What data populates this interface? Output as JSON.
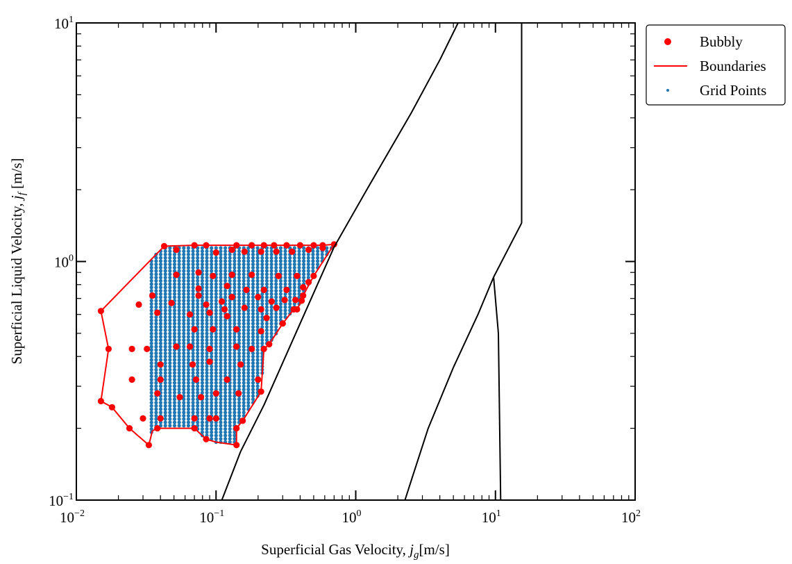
{
  "chart_data": {
    "type": "scatter",
    "xscale": "log",
    "yscale": "log",
    "xlim": [
      0.01,
      100
    ],
    "ylim": [
      0.1,
      10
    ],
    "xticks": [
      {
        "base": "10",
        "exp": "−2"
      },
      {
        "base": "10",
        "exp": "−1"
      },
      {
        "base": "10",
        "exp": "0"
      },
      {
        "base": "10",
        "exp": "1"
      },
      {
        "base": "10",
        "exp": "2"
      }
    ],
    "yticks": [
      {
        "base": "10",
        "exp": "−1"
      },
      {
        "base": "10",
        "exp": "0"
      },
      {
        "base": "10",
        "exp": "1"
      }
    ],
    "xlabel": {
      "text": "Superficial Gas Velocity, ",
      "var": "j",
      "sub": "g",
      "unit": "[m/s]"
    },
    "ylabel": {
      "text": "Superficial Liquid Velocity, ",
      "var": "j",
      "sub": "f",
      "unit": " [m/s]"
    },
    "grid": false,
    "legend": {
      "position": "outside-top-right",
      "entries": [
        {
          "label": "Bubbly",
          "marker": "dot",
          "color": "#ff0000"
        },
        {
          "label": "Boundaries",
          "marker": "line",
          "color": "#ff0000"
        },
        {
          "label": "Grid Points",
          "marker": "small-dot",
          "color": "#1f77b4"
        }
      ]
    },
    "colors": {
      "bubbly": "#ff0000",
      "boundaries": "#ff0000",
      "grid": "#1f77b4",
      "transition": "#000000"
    },
    "grid_points": {
      "x_range": [
        0.0345,
        0.67
      ],
      "y_range": [
        0.175,
        1.14
      ],
      "n_columns": 40,
      "n_rows": 60
    },
    "boundary_polygon": [
      [
        0.0425,
        1.16
      ],
      [
        0.07,
        1.17
      ],
      [
        0.085,
        1.17
      ],
      [
        0.14,
        1.17
      ],
      [
        0.18,
        1.17
      ],
      [
        0.22,
        1.17
      ],
      [
        0.26,
        1.17
      ],
      [
        0.32,
        1.17
      ],
      [
        0.4,
        1.17
      ],
      [
        0.5,
        1.17
      ],
      [
        0.58,
        1.17
      ],
      [
        0.7,
        1.18
      ],
      [
        0.5,
        0.87
      ],
      [
        0.42,
        0.72
      ],
      [
        0.41,
        0.685
      ],
      [
        0.38,
        0.63
      ],
      [
        0.36,
        0.63
      ],
      [
        0.3,
        0.55
      ],
      [
        0.24,
        0.45
      ],
      [
        0.22,
        0.43
      ],
      [
        0.21,
        0.285
      ],
      [
        0.155,
        0.215
      ],
      [
        0.14,
        0.2
      ],
      [
        0.14,
        0.17
      ],
      [
        0.1,
        0.175
      ],
      [
        0.085,
        0.18
      ],
      [
        0.07,
        0.2
      ],
      [
        0.038,
        0.2
      ],
      [
        0.035,
        0.195
      ],
      [
        0.033,
        0.17
      ],
      [
        0.024,
        0.2
      ],
      [
        0.018,
        0.245
      ],
      [
        0.015,
        0.26
      ],
      [
        0.017,
        0.43
      ],
      [
        0.015,
        0.62
      ],
      [
        0.0425,
        1.16
      ]
    ],
    "bubbly_points": [
      [
        0.0425,
        1.16
      ],
      [
        0.07,
        1.17
      ],
      [
        0.085,
        1.17
      ],
      [
        0.14,
        1.17
      ],
      [
        0.18,
        1.17
      ],
      [
        0.22,
        1.17
      ],
      [
        0.26,
        1.17
      ],
      [
        0.32,
        1.17
      ],
      [
        0.4,
        1.17
      ],
      [
        0.5,
        1.17
      ],
      [
        0.58,
        1.17
      ],
      [
        0.7,
        1.18
      ],
      [
        0.5,
        0.87
      ],
      [
        0.42,
        0.72
      ],
      [
        0.41,
        0.685
      ],
      [
        0.38,
        0.63
      ],
      [
        0.36,
        0.63
      ],
      [
        0.3,
        0.55
      ],
      [
        0.24,
        0.45
      ],
      [
        0.22,
        0.43
      ],
      [
        0.21,
        0.285
      ],
      [
        0.155,
        0.215
      ],
      [
        0.14,
        0.2
      ],
      [
        0.14,
        0.17
      ],
      [
        0.085,
        0.18
      ],
      [
        0.07,
        0.2
      ],
      [
        0.038,
        0.2
      ],
      [
        0.033,
        0.17
      ],
      [
        0.024,
        0.2
      ],
      [
        0.018,
        0.245
      ],
      [
        0.015,
        0.26
      ],
      [
        0.017,
        0.43
      ],
      [
        0.015,
        0.62
      ],
      [
        0.052,
        1.12
      ],
      [
        0.1,
        1.09
      ],
      [
        0.13,
        1.12
      ],
      [
        0.16,
        1.1
      ],
      [
        0.21,
        1.1
      ],
      [
        0.27,
        1.1
      ],
      [
        0.35,
        1.1
      ],
      [
        0.46,
        1.12
      ],
      [
        0.58,
        1.14
      ],
      [
        0.052,
        0.88
      ],
      [
        0.075,
        0.9
      ],
      [
        0.095,
        0.87
      ],
      [
        0.13,
        0.88
      ],
      [
        0.18,
        0.88
      ],
      [
        0.28,
        0.87
      ],
      [
        0.38,
        0.87
      ],
      [
        0.46,
        0.82
      ],
      [
        0.075,
        0.77
      ],
      [
        0.12,
        0.79
      ],
      [
        0.165,
        0.76
      ],
      [
        0.22,
        0.76
      ],
      [
        0.32,
        0.76
      ],
      [
        0.42,
        0.78
      ],
      [
        0.035,
        0.72
      ],
      [
        0.075,
        0.72
      ],
      [
        0.11,
        0.68
      ],
      [
        0.13,
        0.71
      ],
      [
        0.2,
        0.71
      ],
      [
        0.25,
        0.68
      ],
      [
        0.31,
        0.69
      ],
      [
        0.37,
        0.69
      ],
      [
        0.028,
        0.66
      ],
      [
        0.048,
        0.67
      ],
      [
        0.085,
        0.66
      ],
      [
        0.115,
        0.63
      ],
      [
        0.16,
        0.64
      ],
      [
        0.21,
        0.63
      ],
      [
        0.27,
        0.64
      ],
      [
        0.038,
        0.61
      ],
      [
        0.065,
        0.6
      ],
      [
        0.09,
        0.61
      ],
      [
        0.12,
        0.59
      ],
      [
        0.23,
        0.58
      ],
      [
        0.07,
        0.52
      ],
      [
        0.095,
        0.52
      ],
      [
        0.14,
        0.52
      ],
      [
        0.21,
        0.51
      ],
      [
        0.025,
        0.43
      ],
      [
        0.032,
        0.43
      ],
      [
        0.052,
        0.44
      ],
      [
        0.065,
        0.44
      ],
      [
        0.09,
        0.43
      ],
      [
        0.14,
        0.44
      ],
      [
        0.18,
        0.43
      ],
      [
        0.04,
        0.37
      ],
      [
        0.068,
        0.37
      ],
      [
        0.09,
        0.38
      ],
      [
        0.15,
        0.37
      ],
      [
        0.025,
        0.32
      ],
      [
        0.04,
        0.32
      ],
      [
        0.072,
        0.32
      ],
      [
        0.12,
        0.32
      ],
      [
        0.2,
        0.32
      ],
      [
        0.038,
        0.28
      ],
      [
        0.055,
        0.27
      ],
      [
        0.078,
        0.27
      ],
      [
        0.1,
        0.28
      ],
      [
        0.145,
        0.28
      ],
      [
        0.03,
        0.22
      ],
      [
        0.04,
        0.22
      ],
      [
        0.07,
        0.22
      ],
      [
        0.09,
        0.22
      ],
      [
        0.1,
        0.22
      ]
    ],
    "transition_curves": [
      {
        "points": [
          [
            0.11,
            0.1
          ],
          [
            0.15,
            0.16
          ],
          [
            0.22,
            0.25
          ],
          [
            0.4,
            0.55
          ],
          [
            0.7,
            1.15
          ],
          [
            1.2,
            2.0
          ],
          [
            2.5,
            4.2
          ],
          [
            4.0,
            7.0
          ],
          [
            5.4,
            10.0
          ]
        ]
      },
      {
        "points": [
          [
            2.25,
            0.1
          ],
          [
            2.6,
            0.13
          ],
          [
            3.3,
            0.2
          ],
          [
            5.0,
            0.36
          ],
          [
            7.5,
            0.6
          ],
          [
            9.7,
            0.86
          ],
          [
            15.4,
            1.45
          ]
        ]
      },
      {
        "points": [
          [
            15.4,
            1.45
          ],
          [
            15.4,
            10.0
          ]
        ]
      },
      {
        "points": [
          [
            9.7,
            0.86
          ],
          [
            10.5,
            0.5
          ],
          [
            10.9,
            0.1
          ]
        ]
      }
    ]
  }
}
